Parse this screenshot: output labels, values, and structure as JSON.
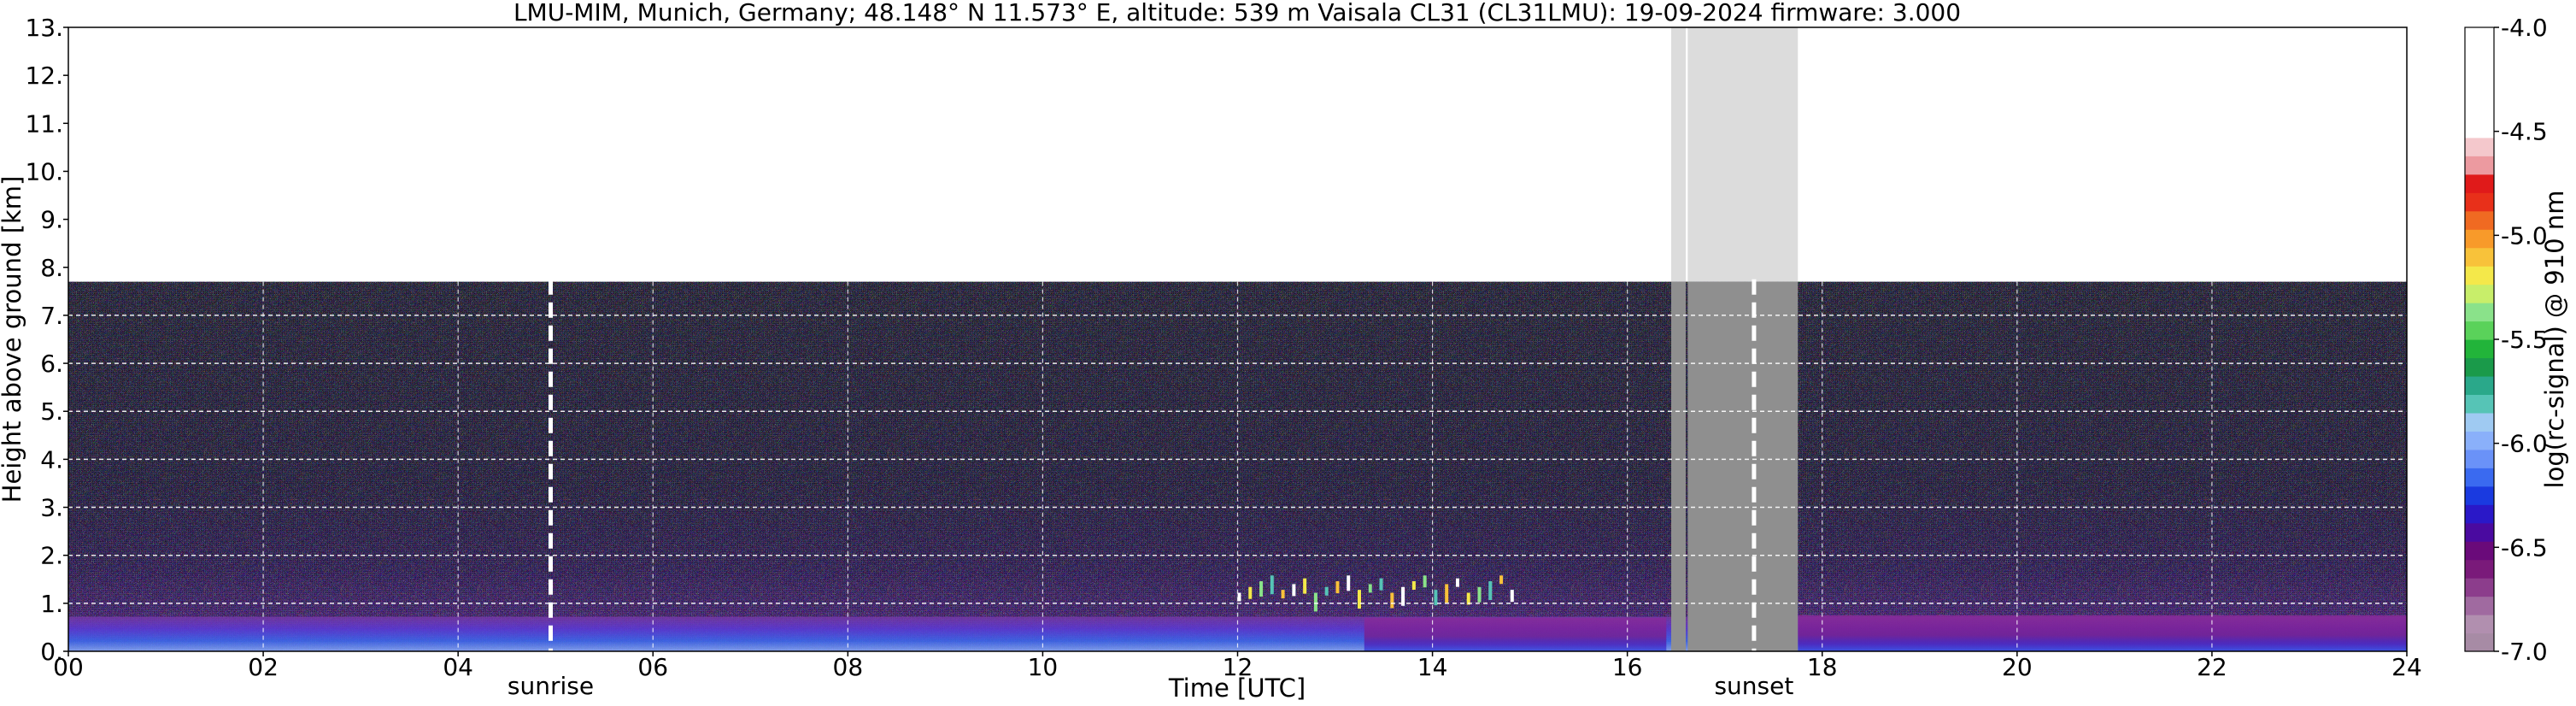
{
  "chart_data": {
    "type": "heatmap",
    "title": "LMU-MIM, Munich, Germany; 48.148° N 11.573° E, altitude: 539 m    Vaisala CL31 (CL31LMU): 19-09-2024    firmware: 3.000",
    "xlabel": "Time [UTC]",
    "ylabel": "Height above ground [km]",
    "xlim": [
      0,
      24
    ],
    "ylim": [
      0,
      13
    ],
    "x_ticks": [
      "00",
      "02",
      "04",
      "06",
      "08",
      "10",
      "12",
      "14",
      "16",
      "18",
      "20",
      "22",
      "24"
    ],
    "y_ticks": [
      "0.",
      "1.",
      "2.",
      "3.",
      "4.",
      "5.",
      "6.",
      "7.",
      "8.",
      "9.",
      "10.",
      "11.",
      "12.",
      "13."
    ],
    "grid": true,
    "data_max_height_km": 7.7,
    "events": [
      {
        "label": "sunrise",
        "time": 4.95
      },
      {
        "label": "sunset",
        "time": 17.3
      }
    ],
    "missing_data": [
      {
        "start": 16.45,
        "end": 16.6
      },
      {
        "start": 16.62,
        "end": 17.75
      }
    ],
    "layers": [
      {
        "name": "boundary-layer",
        "time_start": 0,
        "time_end": 24,
        "height_top_km": 0.9
      },
      {
        "name": "clouds",
        "time_start": 12.0,
        "time_end": 14.8,
        "height_km": 1.4
      }
    ],
    "colorbar": {
      "label": "log(rc-signal) @ 910 nm",
      "range": [
        -7.0,
        -4.0
      ],
      "ticks": [
        "-4.0",
        "-4.5",
        "-5.0",
        "-5.5",
        "-6.0",
        "-6.5",
        "-7.0"
      ],
      "colors": [
        "#a78ba5",
        "#b18faf",
        "#a06aa0",
        "#8c3d8c",
        "#7a1a7a",
        "#6a0a7a",
        "#4a0aa0",
        "#2a18c8",
        "#1a3ae0",
        "#3a6af0",
        "#6a92f8",
        "#8ab0fa",
        "#9fcaf2",
        "#56c4b6",
        "#2aa88a",
        "#1a9a4a",
        "#22b43a",
        "#5ad25a",
        "#8ae28a",
        "#c8ee6a",
        "#f4e84a",
        "#f8c23a",
        "#f89a2a",
        "#f06a22",
        "#e8301a",
        "#e01a1a",
        "#ec9aa0",
        "#f4c8cc",
        "#ffffff",
        "#ffffff",
        "#ffffff",
        "#ffffff",
        "#ffffff",
        "#ffffff"
      ]
    }
  }
}
